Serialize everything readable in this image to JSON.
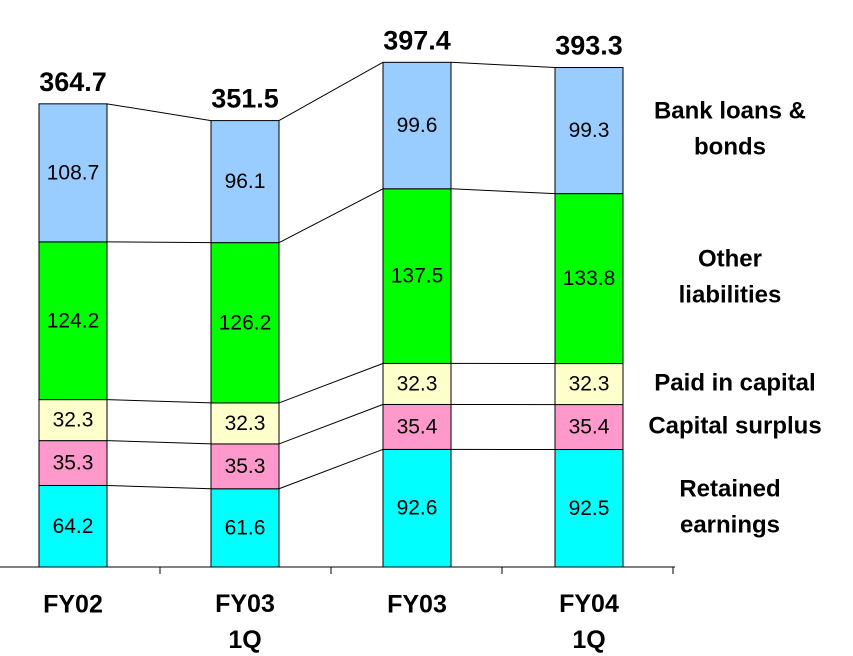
{
  "chart_data": {
    "type": "stacked_bar",
    "categories": [
      "FY02",
      "FY03\n1Q",
      "FY03",
      "FY04\n1Q"
    ],
    "series": [
      {
        "name": "Retained\nearnings",
        "color": "#00ffff",
        "values": [
          64.2,
          61.6,
          92.6,
          92.5
        ]
      },
      {
        "name": "Capital surplus",
        "color": "#ff99cc",
        "values": [
          35.3,
          35.3,
          35.4,
          35.4
        ]
      },
      {
        "name": "Paid in capital",
        "color": "#ffffcc",
        "values": [
          32.3,
          32.3,
          32.3,
          32.3
        ]
      },
      {
        "name": "Other\nliabilities",
        "color": "#00ff00",
        "values": [
          124.2,
          126.2,
          137.5,
          133.8
        ]
      },
      {
        "name": "Bank loans &\nbonds",
        "color": "#99ccff",
        "values": [
          108.7,
          96.1,
          99.6,
          99.3
        ]
      }
    ],
    "totals": [
      364.7,
      351.5,
      397.4,
      393.3
    ],
    "ylim": [
      0,
      400
    ]
  }
}
